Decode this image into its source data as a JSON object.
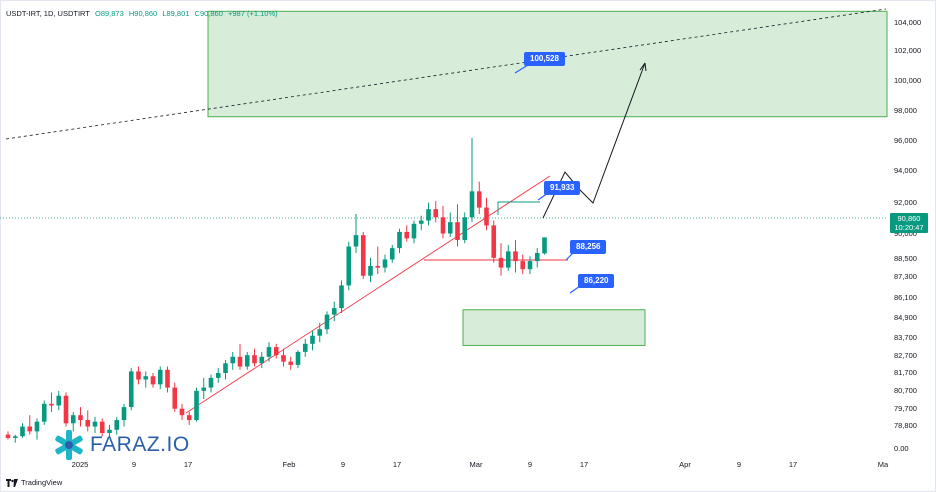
{
  "header": {
    "symbol": "USDT-IRT, 1D, USDTIRT",
    "open": "O89,873",
    "high": "H90,860",
    "low": "L89,801",
    "close": "C90,860",
    "change": "+987 (+1.10%)"
  },
  "current_price": {
    "value": "90,860",
    "countdown": "10:20:47"
  },
  "callouts": {
    "target": "100,528",
    "resistance": "91,933",
    "support": "88,256",
    "demand": "86,220"
  },
  "watermark": "FARAZ.IO",
  "footer_brand": "TradingView",
  "colors": {
    "up": "#089981",
    "down": "#f23645",
    "zone": "#4caf50",
    "callout": "#2962ff",
    "trend": "#f23645"
  },
  "chart_data": {
    "type": "candlestick",
    "title": "USDT-IRT, 1D, USDTIRT",
    "xlabel": "",
    "ylabel": "",
    "y_ticks": [
      "104,000",
      "102,000",
      "100,000",
      "98,000",
      "96,000",
      "94,000",
      "92,000",
      "90,000",
      "88,500",
      "87,300",
      "86,100",
      "84,900",
      "83,700",
      "82,700",
      "81,700",
      "80,700",
      "79,700",
      "78,800",
      "0.00"
    ],
    "x_ticks": [
      "2025",
      "9",
      "17",
      "Feb",
      "9",
      "17",
      "Mar",
      "9",
      "17",
      "Apr",
      "9",
      "17",
      "Ma"
    ],
    "candles": [
      {
        "o": 78700,
        "h": 78900,
        "l": 78400,
        "c": 78500
      },
      {
        "o": 78500,
        "h": 78700,
        "l": 78200,
        "c": 78600
      },
      {
        "o": 78600,
        "h": 79400,
        "l": 78500,
        "c": 79200
      },
      {
        "o": 79200,
        "h": 79900,
        "l": 78700,
        "c": 78900
      },
      {
        "o": 78900,
        "h": 79700,
        "l": 78400,
        "c": 79500
      },
      {
        "o": 79500,
        "h": 80800,
        "l": 79300,
        "c": 80600
      },
      {
        "o": 80600,
        "h": 81300,
        "l": 80100,
        "c": 80500
      },
      {
        "o": 80500,
        "h": 81400,
        "l": 80200,
        "c": 81100
      },
      {
        "o": 81100,
        "h": 81300,
        "l": 79200,
        "c": 79400
      },
      {
        "o": 79400,
        "h": 80100,
        "l": 78900,
        "c": 79900
      },
      {
        "o": 79900,
        "h": 80400,
        "l": 79200,
        "c": 79600
      },
      {
        "o": 79600,
        "h": 80200,
        "l": 78900,
        "c": 79200
      },
      {
        "o": 79200,
        "h": 79800,
        "l": 78800,
        "c": 79500
      },
      {
        "o": 79500,
        "h": 79700,
        "l": 78600,
        "c": 78800
      },
      {
        "o": 78800,
        "h": 79300,
        "l": 78500,
        "c": 79000
      },
      {
        "o": 79000,
        "h": 79800,
        "l": 78700,
        "c": 79600
      },
      {
        "o": 79600,
        "h": 80600,
        "l": 79200,
        "c": 80400
      },
      {
        "o": 80400,
        "h": 82800,
        "l": 80200,
        "c": 82600
      },
      {
        "o": 82600,
        "h": 82900,
        "l": 81800,
        "c": 82100
      },
      {
        "o": 82100,
        "h": 82600,
        "l": 81600,
        "c": 82300
      },
      {
        "o": 82300,
        "h": 82500,
        "l": 81600,
        "c": 81800
      },
      {
        "o": 81800,
        "h": 82900,
        "l": 81500,
        "c": 82700
      },
      {
        "o": 82700,
        "h": 82900,
        "l": 81300,
        "c": 81600
      },
      {
        "o": 81600,
        "h": 81900,
        "l": 80100,
        "c": 80300
      },
      {
        "o": 80300,
        "h": 80600,
        "l": 79600,
        "c": 79900
      },
      {
        "o": 79900,
        "h": 80100,
        "l": 79300,
        "c": 79600
      },
      {
        "o": 79600,
        "h": 81600,
        "l": 79500,
        "c": 81400
      },
      {
        "o": 81400,
        "h": 82200,
        "l": 80900,
        "c": 81600
      },
      {
        "o": 81600,
        "h": 82400,
        "l": 81300,
        "c": 82200
      },
      {
        "o": 82200,
        "h": 82800,
        "l": 81900,
        "c": 82500
      },
      {
        "o": 82500,
        "h": 83300,
        "l": 82100,
        "c": 83100
      },
      {
        "o": 83100,
        "h": 83800,
        "l": 82700,
        "c": 83500
      },
      {
        "o": 83500,
        "h": 84300,
        "l": 82700,
        "c": 82900
      },
      {
        "o": 82900,
        "h": 83800,
        "l": 82700,
        "c": 83600
      },
      {
        "o": 83600,
        "h": 84000,
        "l": 82900,
        "c": 83100
      },
      {
        "o": 83100,
        "h": 83800,
        "l": 82800,
        "c": 83500
      },
      {
        "o": 83500,
        "h": 84400,
        "l": 83200,
        "c": 84100
      },
      {
        "o": 84100,
        "h": 84300,
        "l": 83400,
        "c": 83600
      },
      {
        "o": 83600,
        "h": 84000,
        "l": 82900,
        "c": 83200
      },
      {
        "o": 83200,
        "h": 83500,
        "l": 82700,
        "c": 83000
      },
      {
        "o": 83000,
        "h": 83900,
        "l": 82800,
        "c": 83800
      },
      {
        "o": 83800,
        "h": 84600,
        "l": 83500,
        "c": 84300
      },
      {
        "o": 84300,
        "h": 85100,
        "l": 83900,
        "c": 84800
      },
      {
        "o": 84800,
        "h": 85600,
        "l": 84400,
        "c": 85200
      },
      {
        "o": 85200,
        "h": 86300,
        "l": 84900,
        "c": 86100
      },
      {
        "o": 86100,
        "h": 86900,
        "l": 85700,
        "c": 86500
      },
      {
        "o": 86500,
        "h": 88200,
        "l": 86200,
        "c": 87900
      },
      {
        "o": 87900,
        "h": 90600,
        "l": 87600,
        "c": 90300
      },
      {
        "o": 90300,
        "h": 92300,
        "l": 89900,
        "c": 91000
      },
      {
        "o": 91000,
        "h": 91200,
        "l": 88300,
        "c": 88500
      },
      {
        "o": 88500,
        "h": 89600,
        "l": 88100,
        "c": 89100
      },
      {
        "o": 89100,
        "h": 90300,
        "l": 88600,
        "c": 89000
      },
      {
        "o": 89000,
        "h": 89800,
        "l": 88700,
        "c": 89500
      },
      {
        "o": 89500,
        "h": 90400,
        "l": 89300,
        "c": 90200
      },
      {
        "o": 90200,
        "h": 91400,
        "l": 89900,
        "c": 91200
      },
      {
        "o": 91200,
        "h": 91600,
        "l": 90600,
        "c": 90800
      },
      {
        "o": 90800,
        "h": 91900,
        "l": 90500,
        "c": 91700
      },
      {
        "o": 91700,
        "h": 92200,
        "l": 91300,
        "c": 91900
      },
      {
        "o": 91900,
        "h": 93000,
        "l": 91600,
        "c": 92600
      },
      {
        "o": 92600,
        "h": 93100,
        "l": 91800,
        "c": 92100
      },
      {
        "o": 92100,
        "h": 92800,
        "l": 90800,
        "c": 91100
      },
      {
        "o": 91100,
        "h": 92400,
        "l": 90900,
        "c": 91800
      },
      {
        "o": 91800,
        "h": 92900,
        "l": 90300,
        "c": 90700
      },
      {
        "o": 90700,
        "h": 92400,
        "l": 90500,
        "c": 92100
      },
      {
        "o": 92100,
        "h": 97000,
        "l": 91800,
        "c": 93700
      },
      {
        "o": 93700,
        "h": 94300,
        "l": 92300,
        "c": 92700
      },
      {
        "o": 92700,
        "h": 93300,
        "l": 91300,
        "c": 91600
      },
      {
        "o": 91600,
        "h": 91900,
        "l": 89300,
        "c": 89600
      },
      {
        "o": 89600,
        "h": 90500,
        "l": 88500,
        "c": 89000
      },
      {
        "o": 89000,
        "h": 90400,
        "l": 88800,
        "c": 90000
      },
      {
        "o": 90000,
        "h": 90700,
        "l": 88700,
        "c": 89400
      },
      {
        "o": 89400,
        "h": 89800,
        "l": 88600,
        "c": 88900
      },
      {
        "o": 88900,
        "h": 89700,
        "l": 88600,
        "c": 89400
      },
      {
        "o": 89400,
        "h": 90200,
        "l": 89000,
        "c": 89900
      },
      {
        "o": 89873,
        "h": 90860,
        "l": 89801,
        "c": 90860
      }
    ],
    "zones": [
      {
        "name": "target zone",
        "from": 98300,
        "to": 104800
      },
      {
        "name": "demand zone",
        "from": 84200,
        "to": 86400
      }
    ],
    "grid": false
  }
}
